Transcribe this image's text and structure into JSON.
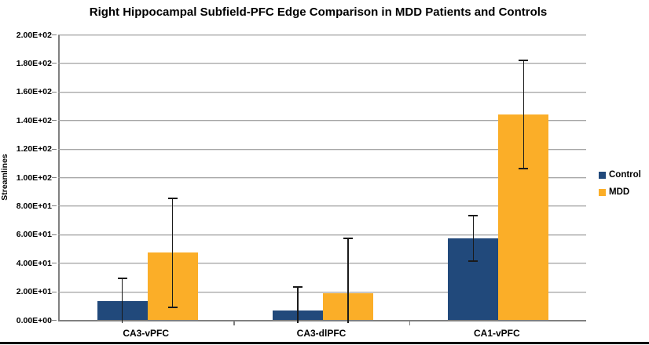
{
  "page": {
    "background_color": "#FFFFFF",
    "bottom_border_color": "#0A0A0A"
  },
  "colors": {
    "gridline": "#A6A6A6",
    "axis": "#808080",
    "error_bar": "#1A1A1A",
    "text": "#000000"
  },
  "legend": {
    "entries": [
      {
        "label": "Control",
        "swatch_color": "#21497B"
      },
      {
        "label": "MDD",
        "swatch_color": "#FBAE28"
      }
    ]
  },
  "chart_data": {
    "type": "bar",
    "title": "Right Hippocampal Subfield-PFC Edge Comparison in MDD Patients and Controls",
    "xlabel": "",
    "ylabel": "Streamlines",
    "categories": [
      "CA3-vPFC",
      "CA3-dlPFC",
      "CA1-vPFC"
    ],
    "series": [
      {
        "name": "Control",
        "color": "#21497B",
        "values": [
          13,
          6.5,
          57
        ],
        "error_plus": [
          16,
          16.5,
          16
        ],
        "error_minus": [
          16,
          16.5,
          16
        ]
      },
      {
        "name": "MDD",
        "color": "#FBAE28",
        "values": [
          47,
          18.5,
          144
        ],
        "error_plus": [
          38,
          38.5,
          38
        ],
        "error_minus": [
          38,
          38.5,
          38
        ]
      }
    ],
    "ylim": [
      0,
      200
    ],
    "ytick_step": 20,
    "ytick_labels": [
      "0.00E+00",
      "2.00E+01",
      "4.00E+01",
      "6.00E+01",
      "8.00E+01",
      "1.00E+02",
      "1.20E+02",
      "1.40E+02",
      "1.60E+02",
      "1.80E+02",
      "2.00E+02"
    ],
    "grid": true,
    "legend_position": "right",
    "error_bar_style": "black lines with caps, clipped just below zero when negative"
  }
}
